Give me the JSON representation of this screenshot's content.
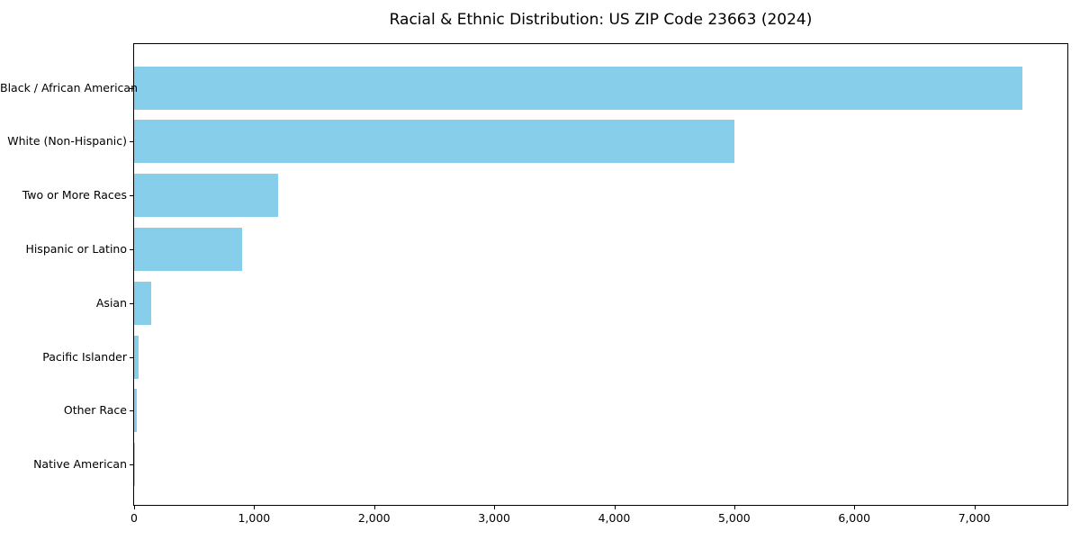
{
  "chart_data": {
    "type": "bar",
    "orientation": "horizontal",
    "title": "Racial & Ethnic Distribution: US ZIP Code 23663 (2024)",
    "categories": [
      "Black / African American",
      "White (Non-Hispanic)",
      "Two or More Races",
      "Hispanic or Latino",
      "Asian",
      "Pacific Islander",
      "Other Race",
      "Native American"
    ],
    "values": [
      7400,
      5000,
      1200,
      900,
      145,
      35,
      20,
      5
    ],
    "xlabel": "",
    "ylabel": "",
    "xlim": [
      0,
      7775
    ],
    "xticks": [
      0,
      1000,
      2000,
      3000,
      4000,
      5000,
      6000,
      7000
    ],
    "xtick_labels": [
      "0",
      "1,000",
      "2,000",
      "3,000",
      "4,000",
      "5,000",
      "6,000",
      "7,000"
    ],
    "bar_color": "#87CEEB",
    "axis_color": "#000000",
    "grid": false,
    "legend": null
  }
}
